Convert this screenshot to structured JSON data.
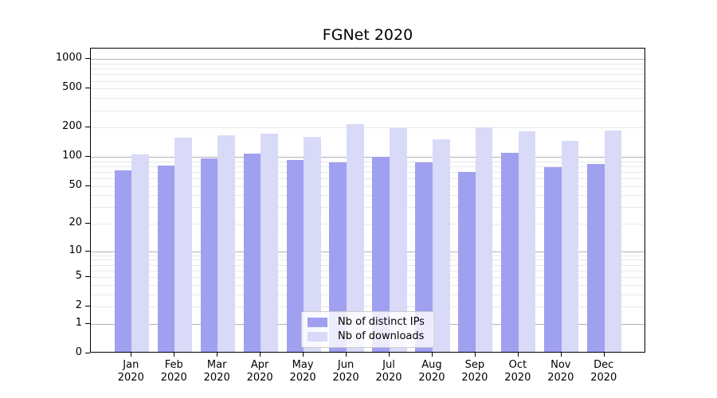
{
  "figure": {
    "title": "FGNet 2020",
    "background": "#ffffff"
  },
  "chart_data": {
    "type": "bar",
    "title": "FGNet 2020",
    "xlabel": "",
    "ylabel": "",
    "categories": [
      "Jan",
      "Feb",
      "Mar",
      "Apr",
      "May",
      "Jun",
      "Jul",
      "Aug",
      "Sep",
      "Oct",
      "Nov",
      "Dec"
    ],
    "category_year": "2020",
    "series": [
      {
        "name": "Nb of distinct IPs",
        "color": "#a0a0f0",
        "values": [
          72,
          82,
          96,
          108,
          92,
          88,
          100,
          87,
          70,
          110,
          78,
          85
        ]
      },
      {
        "name": "Nb of downloads",
        "color": "#d9d9f8",
        "values": [
          105,
          158,
          167,
          172,
          160,
          218,
          196,
          151,
          202,
          182,
          145,
          185
        ]
      }
    ],
    "yscale": "log1p",
    "yticks": [
      0,
      1,
      2,
      5,
      10,
      20,
      50,
      100,
      200,
      500,
      1000
    ],
    "ylim": [
      0,
      1290
    ],
    "grid": "on",
    "grid_major_values": [
      1,
      10,
      100,
      1000
    ],
    "grid_major_color": "#b3b3b3",
    "grid_minor_color": "#e8e8e8",
    "legend_position": "lower center",
    "axis_color": "#000000"
  }
}
